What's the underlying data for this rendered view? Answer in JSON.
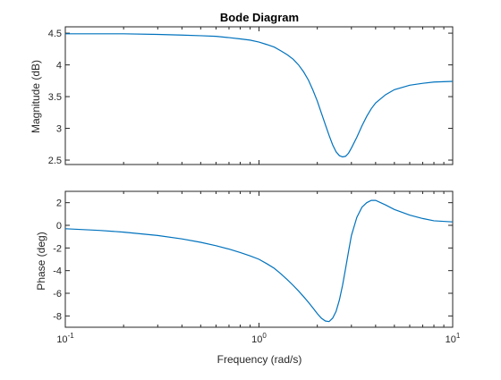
{
  "chart_data": [
    {
      "type": "line",
      "title": "Bode Diagram",
      "ylabel": "Magnitude (dB)",
      "xscale": "log",
      "xlim": [
        0.1,
        10
      ],
      "ylim": [
        2.43,
        4.6
      ],
      "yticks": [
        2.5,
        3,
        3.5,
        4,
        4.5
      ],
      "ytick_labels": [
        "2.5",
        "3",
        "3.5",
        "4",
        "4.5"
      ],
      "xtick_labels": [],
      "grid": false,
      "color": "#0072BD",
      "x": [
        0.1,
        0.2,
        0.3,
        0.4,
        0.5,
        0.6,
        0.7,
        0.8,
        0.9,
        1.0,
        1.1,
        1.2,
        1.3,
        1.4,
        1.5,
        1.6,
        1.7,
        1.8,
        1.9,
        2.0,
        2.1,
        2.2,
        2.3,
        2.4,
        2.5,
        2.6,
        2.7,
        2.8,
        2.9,
        3.0,
        3.2,
        3.4,
        3.6,
        3.8,
        4.0,
        4.5,
        5.0,
        6.0,
        7.0,
        8.0,
        10.0
      ],
      "y": [
        4.49,
        4.49,
        4.48,
        4.47,
        4.46,
        4.45,
        4.43,
        4.41,
        4.39,
        4.36,
        4.32,
        4.28,
        4.22,
        4.16,
        4.09,
        4.0,
        3.89,
        3.76,
        3.6,
        3.43,
        3.24,
        3.06,
        2.89,
        2.74,
        2.63,
        2.57,
        2.55,
        2.56,
        2.61,
        2.69,
        2.86,
        3.04,
        3.19,
        3.31,
        3.4,
        3.53,
        3.61,
        3.68,
        3.71,
        3.73,
        3.74
      ]
    },
    {
      "type": "line",
      "title": "",
      "xlabel": "Frequency (rad/s)",
      "ylabel": "Phase (deg)",
      "xscale": "log",
      "xlim": [
        0.1,
        10
      ],
      "ylim": [
        -9,
        3
      ],
      "yticks": [
        -8,
        -6,
        -4,
        -2,
        0,
        2
      ],
      "ytick_labels": [
        "-8",
        "-6",
        "-4",
        "-2",
        "0",
        "2"
      ],
      "xticks": [
        0.1,
        1,
        10
      ],
      "xtick_labels": [
        {
          "base": "10",
          "exp": "-1"
        },
        {
          "base": "10",
          "exp": "0"
        },
        {
          "base": "10",
          "exp": "1"
        }
      ],
      "grid": false,
      "color": "#0072BD",
      "x": [
        0.1,
        0.15,
        0.2,
        0.3,
        0.4,
        0.5,
        0.6,
        0.7,
        0.8,
        0.9,
        1.0,
        1.1,
        1.2,
        1.3,
        1.4,
        1.5,
        1.6,
        1.7,
        1.8,
        1.9,
        2.0,
        2.1,
        2.2,
        2.3,
        2.4,
        2.5,
        2.6,
        2.7,
        2.8,
        2.9,
        3.0,
        3.2,
        3.4,
        3.6,
        3.8,
        4.0,
        4.5,
        5.0,
        6.0,
        7.0,
        8.0,
        10.0
      ],
      "y": [
        -0.3,
        -0.45,
        -0.6,
        -0.9,
        -1.2,
        -1.5,
        -1.8,
        -2.1,
        -2.4,
        -2.7,
        -3.0,
        -3.4,
        -3.8,
        -4.3,
        -4.8,
        -5.3,
        -5.8,
        -6.3,
        -6.8,
        -7.3,
        -7.8,
        -8.2,
        -8.45,
        -8.5,
        -8.2,
        -7.6,
        -6.6,
        -5.3,
        -3.8,
        -2.3,
        -0.9,
        0.7,
        1.6,
        2.0,
        2.2,
        2.2,
        1.8,
        1.4,
        0.9,
        0.6,
        0.4,
        0.3
      ]
    }
  ]
}
